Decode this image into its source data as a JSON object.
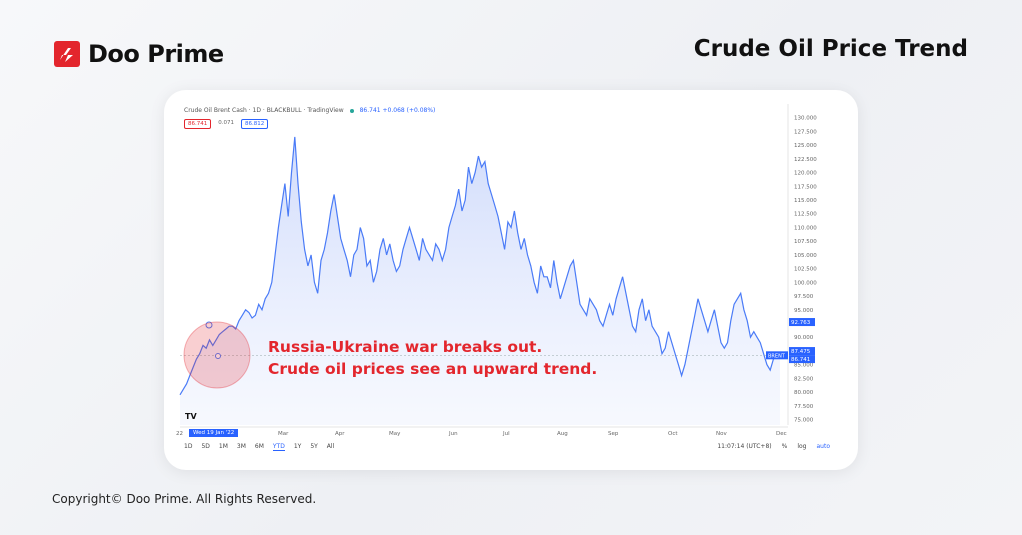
{
  "brand": {
    "name": "Doo Prime"
  },
  "page": {
    "title": "Crude Oil Price Trend"
  },
  "footer": {
    "copyright": "Copyright© Doo Prime. All Rights Reserved."
  },
  "annotation": {
    "line1": "Russia-Ukraine war breaks out.",
    "line2": "Crude oil prices see an upward trend."
  },
  "widget": {
    "header": "Crude Oil Brent Cash · 1D · BLACKBULL · TradingView",
    "live_quote": "86.741 +0.068 (+0.08%)",
    "ohlc": [
      "86.741",
      "0.071",
      "86.812"
    ],
    "date_badge": "Wed 19 Jan '22",
    "ranges": [
      "1D",
      "5D",
      "1M",
      "3M",
      "6M",
      "YTD",
      "1Y",
      "5Y",
      "All"
    ],
    "active_range": "YTD",
    "time_display": "11:07:14 (UTC+8)",
    "scale_options": [
      "%",
      "log",
      "auto"
    ],
    "price_tags": {
      "high": "92.763",
      "mid": "87.475",
      "last": "86.741",
      "symbol": "BRENT"
    }
  },
  "colors": {
    "brand": "#e3262d",
    "line": "#4a7bf7",
    "fill": "#dfe6fb",
    "annotation": "#e3262d"
  },
  "chart_data": {
    "type": "area",
    "title": "Crude Oil Brent Cash",
    "x_tick_labels": [
      "22",
      "Mar",
      "Apr",
      "May",
      "Jun",
      "Jul",
      "Aug",
      "Sep",
      "Oct",
      "Nov",
      "Dec"
    ],
    "y_ticks": [
      75,
      77.5,
      80,
      82.5,
      85,
      87.5,
      90,
      92.5,
      95,
      97.5,
      100,
      102.5,
      105,
      107.5,
      110,
      112.5,
      115,
      117.5,
      120,
      122.5,
      125,
      127.5,
      130
    ],
    "ylim": [
      74,
      132.5
    ],
    "x_unit": "trading day index (Jan 2022 → early Dec 2022)",
    "series": [
      {
        "values": [
          79.5,
          80.5,
          81.5,
          83,
          84.5,
          86,
          87,
          88.5,
          88,
          89.5,
          88.5,
          89.5,
          90.5,
          91,
          91.5,
          92,
          92,
          91.5,
          93,
          94,
          95,
          94.5,
          93.5,
          94,
          96,
          95,
          97,
          98,
          100,
          105,
          110,
          114,
          118,
          112,
          120,
          126.5,
          118,
          111,
          106,
          103,
          105,
          100,
          98,
          104,
          106,
          109,
          113,
          116,
          112,
          108,
          106,
          104,
          101,
          105,
          106,
          110,
          108,
          103,
          104,
          100,
          102,
          106,
          108,
          105,
          107,
          104,
          102,
          103,
          106,
          108,
          110,
          108,
          106,
          104,
          108,
          106,
          105,
          104,
          107,
          106,
          104,
          106,
          110,
          112,
          114,
          117,
          113,
          115,
          121,
          118,
          120,
          123,
          121,
          122,
          118,
          116,
          114,
          112,
          109,
          106,
          111,
          110,
          113,
          109,
          106,
          108,
          105,
          103,
          100,
          98,
          103,
          101,
          101,
          99,
          104,
          100,
          97,
          99,
          101,
          103,
          104,
          100,
          96,
          95,
          94,
          97,
          96,
          95,
          93,
          92,
          94,
          96,
          94,
          97,
          99,
          101,
          98,
          95,
          92,
          91,
          95,
          97,
          93,
          95,
          92,
          91,
          90,
          87,
          88,
          91,
          89,
          87,
          85,
          83,
          85,
          88,
          91,
          94,
          97,
          95,
          93,
          91,
          93,
          95,
          92,
          89,
          88,
          89,
          93,
          96,
          97,
          98,
          95,
          93,
          90,
          91,
          90,
          89,
          87,
          85,
          84,
          86,
          87,
          86.7
        ]
      }
    ]
  }
}
